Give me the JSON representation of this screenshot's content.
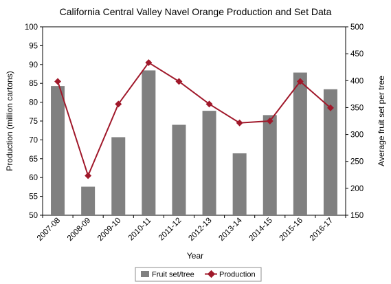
{
  "chart_data": {
    "type": "bar",
    "title": "California Central Valley Navel Orange Production and Set Data",
    "xlabel": "Year",
    "ylabel_left": "Production (million cartons)",
    "ylabel_right": "Average fruit set per tree",
    "categories": [
      "2007-08",
      "2008-09",
      "2009-10",
      "2010-11",
      "2011-12",
      "2012-13",
      "2013-14",
      "2014-15",
      "2015-16",
      "2016-17"
    ],
    "y_left": {
      "min": 50,
      "max": 100,
      "ticks": [
        50,
        55,
        60,
        65,
        70,
        75,
        80,
        85,
        90,
        95,
        100
      ]
    },
    "y_right": {
      "min": 150,
      "max": 500,
      "ticks": [
        150,
        200,
        250,
        300,
        350,
        400,
        450,
        500
      ]
    },
    "grid": false,
    "legend_position": "bottom",
    "series": [
      {
        "name": "Fruit set/tree",
        "type": "bar",
        "axis": "right",
        "color": "#808080",
        "values": [
          390,
          203,
          295,
          419,
          318,
          344,
          265,
          336,
          415,
          384
        ]
      },
      {
        "name": "Production",
        "type": "line",
        "axis": "left",
        "color": "#A0182A",
        "values": [
          85.5,
          60.5,
          79.5,
          90.5,
          85.5,
          79.5,
          74.5,
          75.0,
          85.5,
          78.5
        ]
      }
    ]
  }
}
